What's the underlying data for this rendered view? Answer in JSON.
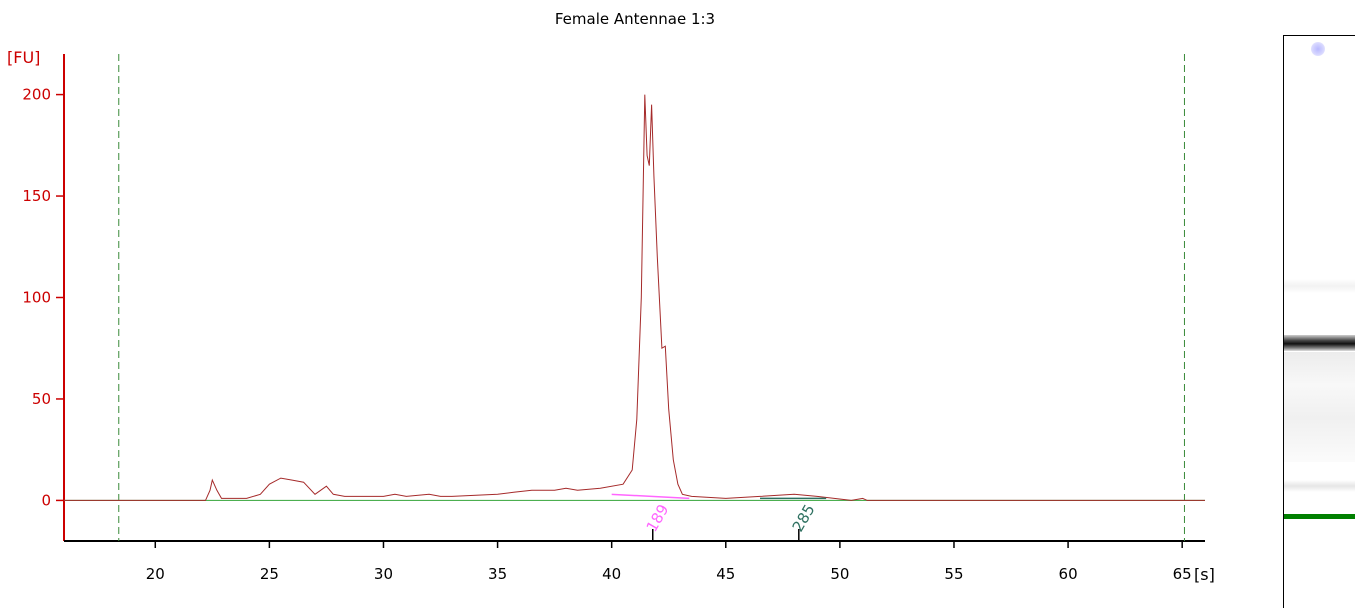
{
  "chart_data": {
    "type": "line",
    "title": "Female Antennae 1:3",
    "ylabel": "[FU]",
    "xlabel": "[s]",
    "xlim": [
      16,
      66
    ],
    "ylim": [
      -20,
      220
    ],
    "yticks": [
      0,
      50,
      100,
      150,
      200
    ],
    "xticks": [
      20,
      25,
      30,
      35,
      40,
      45,
      50,
      55,
      60,
      65
    ],
    "grid": false,
    "marker_lines_s": [
      18.4,
      65.1
    ],
    "series": [
      {
        "color": "#a52a2a",
        "x": [
          16.0,
          22.2,
          22.4,
          22.5,
          22.7,
          22.9,
          24.0,
          24.6,
          25.0,
          25.5,
          26.0,
          26.5,
          27.0,
          27.5,
          27.8,
          28.3,
          30.0,
          30.5,
          31.0,
          32.0,
          32.5,
          33.0,
          35.0,
          35.7,
          36.5,
          37.5,
          38.0,
          38.5,
          39.5,
          40.5,
          40.9,
          41.1,
          41.3,
          41.45,
          41.55,
          41.65,
          41.75,
          41.85,
          42.0,
          42.2,
          42.35,
          42.5,
          42.7,
          42.9,
          43.1,
          43.5,
          45.0,
          46.5,
          48.0,
          49.0,
          50.5,
          51.0,
          51.2,
          52.0,
          66.0
        ],
        "y": [
          0,
          0,
          5,
          10,
          5,
          1,
          1,
          3,
          8,
          11,
          10,
          9,
          3,
          7,
          3,
          2,
          2,
          3,
          2,
          3,
          2,
          2,
          3,
          4,
          5,
          5,
          6,
          5,
          6,
          8,
          15,
          40,
          100,
          200,
          170,
          165,
          195,
          160,
          120,
          75,
          76,
          45,
          20,
          8,
          3,
          2,
          1,
          2,
          3,
          2,
          0,
          1,
          0,
          0,
          0
        ]
      },
      {
        "color": "#4caf50",
        "x": [
          16.0,
          66.0
        ],
        "y": [
          0,
          0
        ]
      }
    ],
    "peak_labels": [
      {
        "text": "189",
        "x": 41.8,
        "color": "#ff66ff"
      },
      {
        "text": "285",
        "x": 48.2,
        "color": "#2e7060"
      }
    ]
  }
}
